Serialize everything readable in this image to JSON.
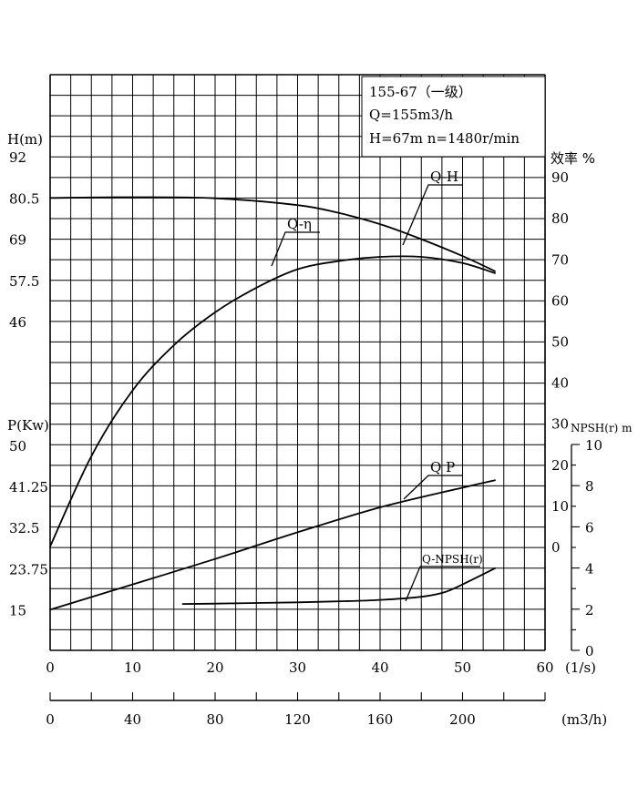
{
  "chart_data": {
    "type": "line",
    "info_box": {
      "line1": "155-67（一级）",
      "line2": "Q=155m3/h",
      "line3": "H=67m  n=1480r/min"
    },
    "axes": {
      "head": {
        "title": "H(m)",
        "ticks": [
          {
            "label": "92",
            "value": 92
          },
          {
            "label": "80.5",
            "value": 80.5
          },
          {
            "label": "69",
            "value": 69
          },
          {
            "label": "57.5",
            "value": 57.5
          },
          {
            "label": "46",
            "value": 46
          }
        ]
      },
      "power": {
        "title": "P(Kw)",
        "ticks": [
          {
            "label": "50",
            "value": 50
          },
          {
            "label": "41.25",
            "value": 41.25
          },
          {
            "label": "32.5",
            "value": 32.5
          },
          {
            "label": "23.75",
            "value": 23.75
          },
          {
            "label": "15",
            "value": 15
          }
        ]
      },
      "efficiency": {
        "title": "效率 %",
        "ticks": [
          {
            "label": "90",
            "value": 90
          },
          {
            "label": "80",
            "value": 80
          },
          {
            "label": "70",
            "value": 70
          },
          {
            "label": "60",
            "value": 60
          },
          {
            "label": "50",
            "value": 50
          },
          {
            "label": "40",
            "value": 40
          },
          {
            "label": "30",
            "value": 30
          },
          {
            "label": "20",
            "value": 20
          },
          {
            "label": "10",
            "value": 10
          },
          {
            "label": "0",
            "value": 0
          }
        ]
      },
      "npsh": {
        "title": "NPSH(r) m",
        "ticks": [
          {
            "label": "10",
            "value": 10
          },
          {
            "label": "8",
            "value": 8
          },
          {
            "label": "6",
            "value": 6
          },
          {
            "label": "4",
            "value": 4
          },
          {
            "label": "2",
            "value": 2
          },
          {
            "label": "0",
            "value": 0
          }
        ]
      },
      "flow_ls": {
        "unit": "(1/s)",
        "range": [
          0,
          60
        ],
        "ticks": [
          {
            "label": "0",
            "value": 0
          },
          {
            "label": "10",
            "value": 10
          },
          {
            "label": "20",
            "value": 20
          },
          {
            "label": "30",
            "value": 30
          },
          {
            "label": "40",
            "value": 40
          },
          {
            "label": "50",
            "value": 50
          },
          {
            "label": "60",
            "value": 60
          }
        ]
      },
      "flow_m3h": {
        "unit": "(m3/h)",
        "ticks": [
          {
            "label": "0",
            "value": 0
          },
          {
            "label": "40",
            "value": 40
          },
          {
            "label": "80",
            "value": 80
          },
          {
            "label": "120",
            "value": 120
          },
          {
            "label": "160",
            "value": 160
          },
          {
            "label": "200",
            "value": 200
          }
        ]
      }
    },
    "series": [
      {
        "name": "Q-H",
        "axis": "head",
        "x": [
          0,
          10,
          20,
          30,
          35,
          40,
          45,
          50,
          54
        ],
        "y": [
          80.5,
          80.7,
          80.4,
          78.5,
          76.3,
          73.2,
          69.0,
          64.3,
          60.0
        ]
      },
      {
        "name": "Q-η",
        "axis": "efficiency",
        "x": [
          0,
          5,
          10,
          15,
          20,
          25,
          30,
          35,
          40,
          45,
          50,
          54
        ],
        "y": [
          0,
          22,
          38,
          49,
          57,
          63,
          67.5,
          69.5,
          70.5,
          70.5,
          69,
          66.5
        ]
      },
      {
        "name": "Q-P",
        "axis": "power",
        "x": [
          0,
          10,
          20,
          30,
          40,
          50,
          54
        ],
        "y": [
          15,
          20.4,
          25.8,
          31.5,
          36.8,
          41,
          42.6
        ]
      },
      {
        "name": "Q-NPSH(r)",
        "axis": "npsh",
        "x": [
          16,
          20,
          25,
          30,
          35,
          40,
          45,
          48,
          51,
          54
        ],
        "y": [
          2.25,
          2.27,
          2.3,
          2.33,
          2.38,
          2.45,
          2.6,
          2.85,
          3.4,
          4.0
        ]
      }
    ],
    "callouts": [
      {
        "label": "Q-H",
        "x": 46,
        "y": 70
      },
      {
        "label": "Q-η",
        "x": 27,
        "y": 65
      },
      {
        "label": "Q P",
        "x": 43,
        "y": 40.5
      },
      {
        "label": "Q-NPSH(r)",
        "x": 43,
        "y": 2.6
      }
    ]
  }
}
